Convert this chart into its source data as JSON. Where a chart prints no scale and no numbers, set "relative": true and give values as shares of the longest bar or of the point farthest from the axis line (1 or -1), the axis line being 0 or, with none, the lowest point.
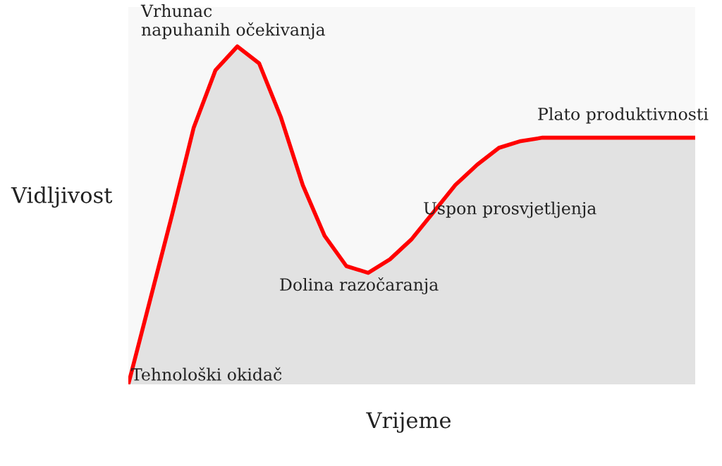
{
  "chart_data": {
    "type": "area",
    "relative": true,
    "xlabel": "Vrijeme",
    "ylabel": "Vidljivost",
    "categories": [
      null,
      null,
      null,
      null,
      null,
      null,
      null,
      null,
      null,
      null,
      null,
      null,
      null,
      null,
      null,
      null,
      null,
      null,
      null,
      null,
      null,
      null,
      null,
      null,
      null,
      null,
      null
    ],
    "series": [
      {
        "color": "#ff0000",
        "values": [
          0,
          0.25,
          0.5,
          0.76,
          0.93,
          1,
          0.95,
          0.79,
          0.59,
          0.44,
          0.35,
          0.33,
          0.37,
          0.43,
          0.51,
          0.59,
          0.65,
          0.7,
          0.72,
          0.73,
          0.73,
          0.73,
          0.73,
          0.73,
          0.73,
          0.73,
          0.73
        ]
      }
    ],
    "annotations": [
      "Vrhunac\nnapuhanih očekivanja",
      "Plato produktivnosti",
      "Uspon prosvjetljenja",
      "Dolina razočaranja",
      "Tehnološki okidač"
    ],
    "grid": false,
    "legend": false
  }
}
